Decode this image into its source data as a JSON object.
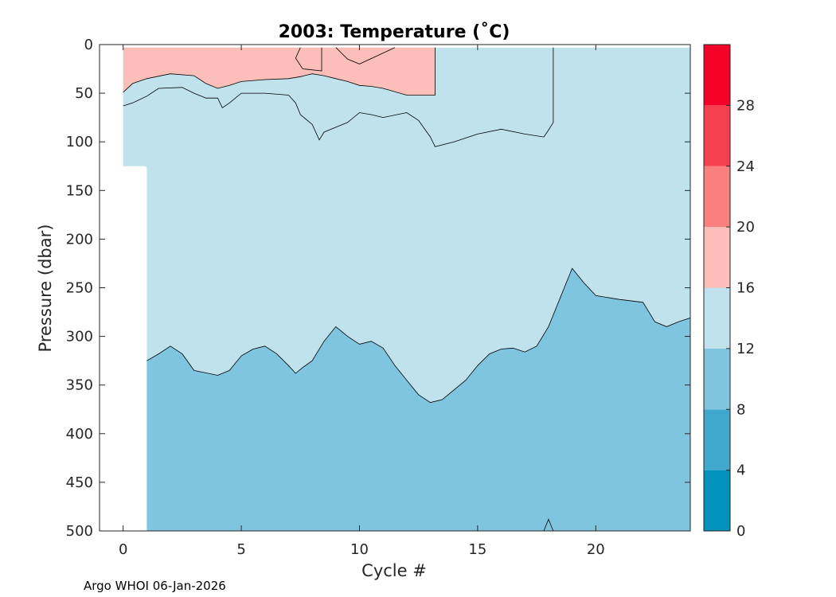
{
  "chart_data": {
    "type": "contourf",
    "title": "2003:  Temperature (˚C)",
    "xlabel": "Cycle #",
    "ylabel": "Pressure (dbar)",
    "xlim": [
      -1,
      24
    ],
    "ylim": [
      0,
      500
    ],
    "y_reversed": true,
    "x_ticks": [
      0,
      5,
      10,
      15,
      20
    ],
    "y_ticks": [
      0,
      50,
      100,
      150,
      200,
      250,
      300,
      350,
      400,
      450,
      500
    ],
    "data_x_range": [
      0,
      24
    ],
    "data_top_pressure": 3,
    "colorbar": {
      "levels": [
        0,
        4,
        8,
        12,
        16,
        20,
        24,
        28,
        32
      ],
      "tick_labels": [
        0,
        4,
        8,
        12,
        16,
        20,
        24,
        28
      ],
      "colors": [
        "#0391be",
        "#41a8cd",
        "#80c5df",
        "#bfe2ec",
        "#fcbeb8",
        "#f9807f",
        "#f7404d",
        "#f50228"
      ]
    },
    "contour_16C": [
      [
        0,
        49
      ],
      [
        0.4,
        40
      ],
      [
        1,
        35
      ],
      [
        2,
        30
      ],
      [
        3,
        32
      ],
      [
        3.5,
        40
      ],
      [
        4,
        45
      ],
      [
        4.5,
        42
      ],
      [
        5,
        38
      ],
      [
        6,
        36
      ],
      [
        7,
        35
      ],
      [
        7.5,
        33
      ],
      [
        8,
        30
      ],
      [
        8.5,
        32
      ],
      [
        9,
        35
      ],
      [
        9.5,
        38
      ],
      [
        10,
        42
      ],
      [
        10.5,
        43
      ],
      [
        11,
        45
      ],
      [
        12,
        52
      ],
      [
        12.5,
        52
      ],
      [
        13,
        52
      ],
      [
        13.2,
        52
      ],
      [
        13.2,
        3
      ]
    ],
    "contour_16C_patches": [
      [
        [
          7.5,
          3
        ],
        [
          7.3,
          14
        ],
        [
          7.6,
          25
        ],
        [
          8.4,
          27
        ],
        [
          8.4,
          3
        ]
      ],
      [
        [
          9.0,
          3
        ],
        [
          9.5,
          15
        ],
        [
          10,
          20
        ],
        [
          11.5,
          3
        ]
      ]
    ],
    "contour_14C": [
      [
        0,
        63
      ],
      [
        0.4,
        60
      ],
      [
        1,
        53
      ],
      [
        1.5,
        45
      ],
      [
        2.5,
        44
      ],
      [
        3,
        50
      ],
      [
        3.5,
        55
      ],
      [
        4,
        55
      ],
      [
        4.2,
        65
      ],
      [
        4.5,
        60
      ],
      [
        5,
        50
      ],
      [
        6,
        50
      ],
      [
        7,
        52
      ],
      [
        7.3,
        60
      ],
      [
        7.5,
        72
      ],
      [
        8,
        82
      ],
      [
        8.3,
        98
      ],
      [
        8.5,
        90
      ],
      [
        9,
        85
      ],
      [
        9.5,
        80
      ],
      [
        10,
        70
      ],
      [
        10.5,
        72
      ],
      [
        11,
        75
      ],
      [
        12,
        70
      ],
      [
        12.5,
        78
      ],
      [
        13,
        95
      ],
      [
        13.2,
        105
      ],
      [
        14,
        100
      ],
      [
        15,
        92
      ],
      [
        16,
        87
      ],
      [
        17,
        92
      ],
      [
        17.8,
        95
      ],
      [
        18,
        88
      ],
      [
        18.2,
        80
      ],
      [
        18.2,
        3
      ]
    ],
    "contour_12C": [
      [
        1,
        325
      ],
      [
        1.5,
        318
      ],
      [
        2,
        310
      ],
      [
        2.5,
        318
      ],
      [
        3,
        335
      ],
      [
        4,
        340
      ],
      [
        4.5,
        335
      ],
      [
        5,
        320
      ],
      [
        5.5,
        313
      ],
      [
        6,
        310
      ],
      [
        6.5,
        318
      ],
      [
        7,
        330
      ],
      [
        7.3,
        338
      ],
      [
        7.6,
        332
      ],
      [
        8,
        325
      ],
      [
        8.5,
        305
      ],
      [
        9,
        290
      ],
      [
        9.5,
        300
      ],
      [
        10,
        308
      ],
      [
        10.5,
        305
      ],
      [
        11,
        312
      ],
      [
        11.5,
        330
      ],
      [
        12,
        345
      ],
      [
        12.5,
        360
      ],
      [
        13,
        368
      ],
      [
        13.5,
        365
      ],
      [
        14,
        355
      ],
      [
        14.5,
        345
      ],
      [
        15,
        330
      ],
      [
        15.5,
        318
      ],
      [
        16,
        313
      ],
      [
        16.5,
        312
      ],
      [
        17,
        316
      ],
      [
        17.5,
        310
      ],
      [
        18,
        290
      ],
      [
        18.5,
        260
      ],
      [
        19,
        230
      ],
      [
        19.5,
        245
      ],
      [
        20,
        258
      ],
      [
        21,
        262
      ],
      [
        22,
        265
      ],
      [
        22.5,
        285
      ],
      [
        23,
        290
      ],
      [
        23.5,
        285
      ],
      [
        24,
        281
      ]
    ],
    "footer": "Argo WHOI 06-Jan-2026"
  }
}
